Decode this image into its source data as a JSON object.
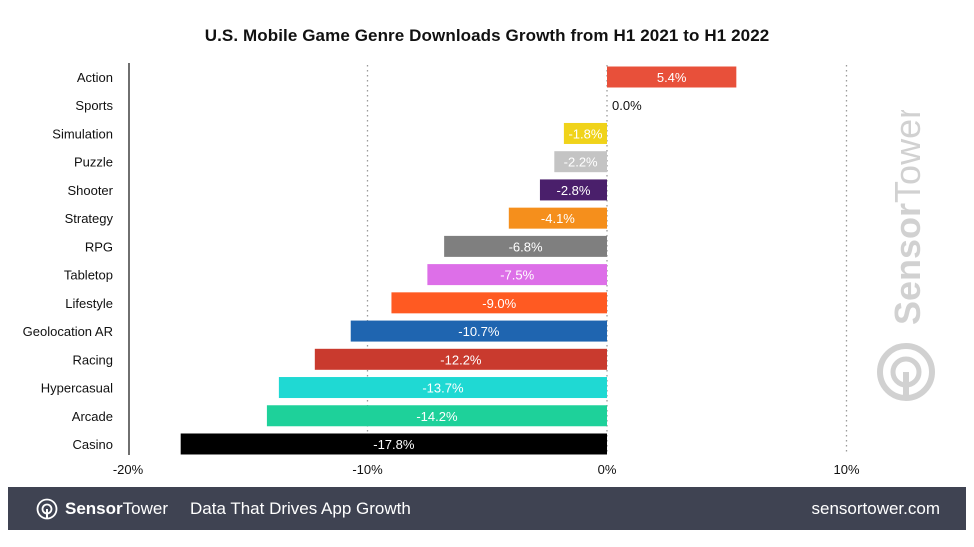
{
  "chart_data": {
    "type": "bar",
    "orientation": "horizontal",
    "title": "U.S. Mobile Game Genre Downloads Growth from H1 2021 to H1 2022",
    "xlabel": "",
    "ylabel": "",
    "xlim": [
      -20,
      15
    ],
    "x_ticks": [
      -20,
      -10,
      0,
      10
    ],
    "x_tick_labels": [
      "-20%",
      "-10%",
      "0%",
      "10%"
    ],
    "grid": "vertical dotted at ticks",
    "categories": [
      "Action",
      "Sports",
      "Simulation",
      "Puzzle",
      "Shooter",
      "Strategy",
      "RPG",
      "Tabletop",
      "Lifestyle",
      "Geolocation AR",
      "Racing",
      "Hypercasual",
      "Arcade",
      "Casino"
    ],
    "values": [
      5.4,
      0.0,
      -1.8,
      -2.2,
      -2.8,
      -4.1,
      -6.8,
      -7.5,
      -9.0,
      -10.7,
      -12.2,
      -13.7,
      -14.2,
      -17.8
    ],
    "data_labels": [
      "5.4%",
      "0.0%",
      "-1.8%",
      "-2.2%",
      "-2.8%",
      "-4.1%",
      "-6.8%",
      "-7.5%",
      "-9.0%",
      "-10.7%",
      "-12.2%",
      "-13.7%",
      "-14.2%",
      "-17.8%"
    ],
    "colors": [
      "#e8503a",
      "#bbbbbb",
      "#f0d31a",
      "#c4c4c4",
      "#4a1f6b",
      "#f58f1c",
      "#7f7f7f",
      "#dd6fe8",
      "#ff5a22",
      "#1f65b0",
      "#c93a2e",
      "#1fd9d3",
      "#1ed19a",
      "#000000"
    ],
    "label_colors": [
      "#ffffff",
      "#111111",
      "#ffffff",
      "#ffffff",
      "#ffffff",
      "#ffffff",
      "#ffffff",
      "#ffffff",
      "#ffffff",
      "#ffffff",
      "#ffffff",
      "#ffffff",
      "#ffffff",
      "#ffffff"
    ]
  },
  "watermark": {
    "sensor": "Sensor",
    "tower": "Tower",
    "logo": "sensor-tower-logo-icon"
  },
  "footer": {
    "logo_sensor": "Sensor",
    "logo_tower": "Tower",
    "tagline": "Data That Drives App Growth",
    "site": "sensortower.com",
    "background": "#3f4352"
  }
}
